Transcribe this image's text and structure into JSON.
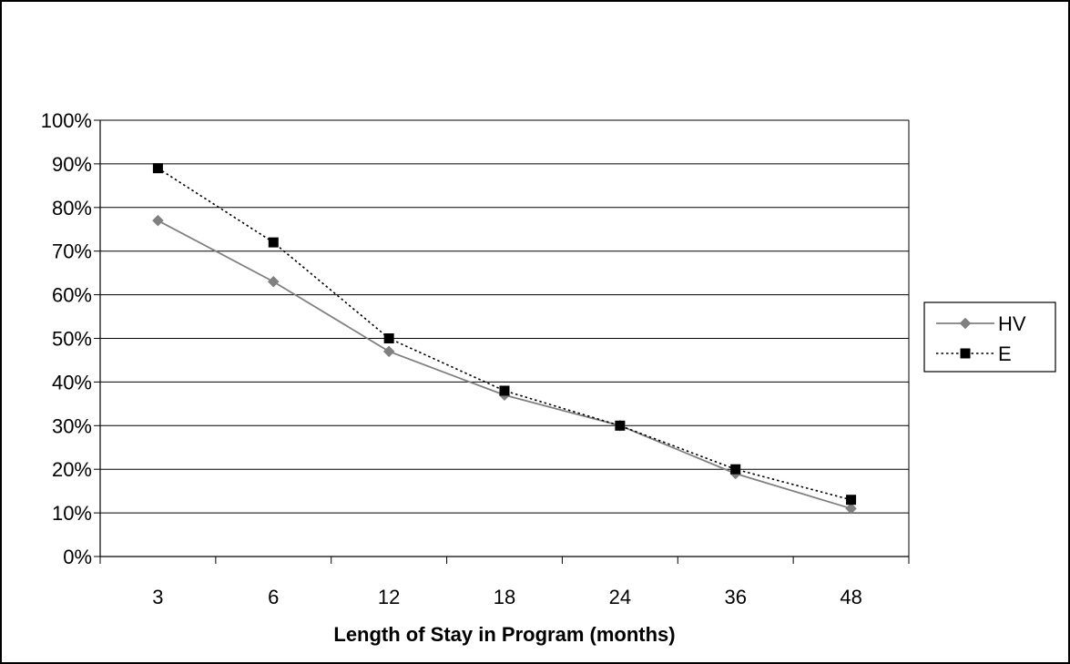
{
  "chart_data": {
    "type": "line",
    "categories": [
      "3",
      "6",
      "12",
      "18",
      "24",
      "36",
      "48"
    ],
    "series": [
      {
        "name": "HV",
        "values": [
          77,
          63,
          47,
          37,
          30,
          19,
          11
        ],
        "color": "#808080",
        "line_style": "solid",
        "marker": "diamond"
      },
      {
        "name": "E",
        "values": [
          89,
          72,
          50,
          38,
          30,
          20,
          13
        ],
        "color": "#000000",
        "line_style": "dotted",
        "marker": "square"
      }
    ],
    "y_tick_labels": [
      "0%",
      "10%",
      "20%",
      "30%",
      "40%",
      "50%",
      "60%",
      "70%",
      "80%",
      "90%",
      "100%"
    ],
    "ylim": [
      0,
      100
    ],
    "y_unit": "%",
    "xlabel": "Length of Stay in Program (months)",
    "ylabel": "",
    "grid": true,
    "legend_position": "right"
  }
}
